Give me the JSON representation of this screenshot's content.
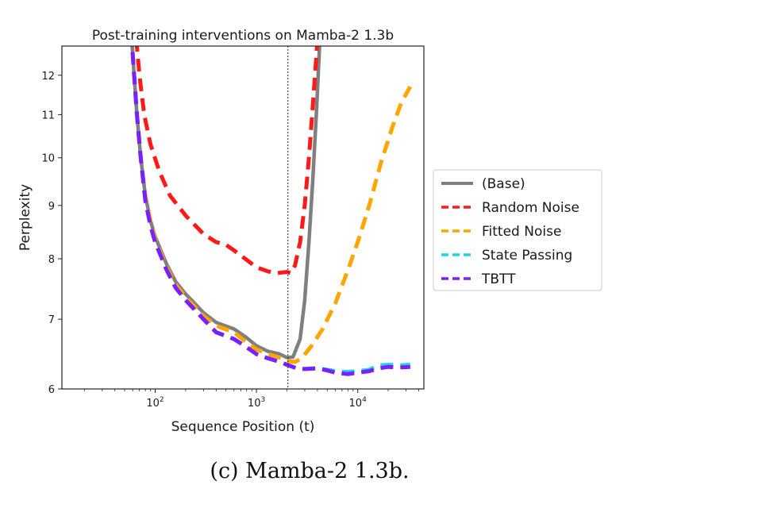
{
  "chart_data": {
    "type": "line",
    "title": "Post-training interventions on Mamba-2 1.3b",
    "xlabel": "Sequence Position (t)",
    "ylabel": "Perplexity",
    "xscale": "log",
    "yscale": "log",
    "xlim": [
      12,
      45000
    ],
    "ylim": [
      6,
      12.8
    ],
    "xticks": [
      {
        "value": 100,
        "base": "10",
        "exp": "2"
      },
      {
        "value": 1000,
        "base": "10",
        "exp": "3"
      },
      {
        "value": 10000,
        "base": "10",
        "exp": "4"
      }
    ],
    "yticks": [
      6,
      7,
      8,
      9,
      10,
      11,
      12
    ],
    "vline": {
      "x": 2048,
      "style": "dotted"
    },
    "grid": false,
    "legend_position": "right-outside",
    "series": [
      {
        "name": "(Base)",
        "color": "#7f7f7f",
        "dash": "solid",
        "points": [
          [
            58,
            13.2
          ],
          [
            62,
            12
          ],
          [
            66,
            11
          ],
          [
            72,
            10
          ],
          [
            80,
            9.2
          ],
          [
            90,
            8.7
          ],
          [
            100,
            8.4
          ],
          [
            130,
            7.9
          ],
          [
            160,
            7.6
          ],
          [
            200,
            7.4
          ],
          [
            300,
            7.1
          ],
          [
            400,
            6.95
          ],
          [
            600,
            6.85
          ],
          [
            800,
            6.72
          ],
          [
            1000,
            6.6
          ],
          [
            1300,
            6.52
          ],
          [
            1700,
            6.48
          ],
          [
            2000,
            6.43
          ],
          [
            2300,
            6.44
          ],
          [
            2700,
            6.7
          ],
          [
            3000,
            7.3
          ],
          [
            3300,
            8.3
          ],
          [
            3600,
            9.5
          ],
          [
            3900,
            11
          ],
          [
            4200,
            12.8
          ],
          [
            4400,
            13.5
          ]
        ]
      },
      {
        "name": "Random Noise",
        "color": "#ff1a1a",
        "dash": "dashed",
        "points": [
          [
            65,
            13
          ],
          [
            70,
            12
          ],
          [
            78,
            11
          ],
          [
            90,
            10.3
          ],
          [
            110,
            9.7
          ],
          [
            140,
            9.2
          ],
          [
            200,
            8.8
          ],
          [
            300,
            8.45
          ],
          [
            400,
            8.3
          ],
          [
            500,
            8.25
          ],
          [
            600,
            8.15
          ],
          [
            800,
            7.98
          ],
          [
            1000,
            7.85
          ],
          [
            1300,
            7.78
          ],
          [
            1600,
            7.75
          ],
          [
            1800,
            7.76
          ],
          [
            2000,
            7.77
          ],
          [
            2200,
            7.75
          ],
          [
            2400,
            7.88
          ],
          [
            2700,
            8.3
          ],
          [
            3000,
            9
          ],
          [
            3300,
            10
          ],
          [
            3600,
            11.2
          ],
          [
            3900,
            12.5
          ],
          [
            4100,
            13.5
          ]
        ]
      },
      {
        "name": "Fitted Noise",
        "color": "#ffa500",
        "dash": "dashed",
        "points": [
          [
            58,
            13.2
          ],
          [
            62,
            12
          ],
          [
            66,
            11
          ],
          [
            72,
            10
          ],
          [
            80,
            9.2
          ],
          [
            90,
            8.7
          ],
          [
            100,
            8.35
          ],
          [
            130,
            7.85
          ],
          [
            160,
            7.55
          ],
          [
            200,
            7.35
          ],
          [
            300,
            7.05
          ],
          [
            400,
            6.9
          ],
          [
            600,
            6.8
          ],
          [
            800,
            6.65
          ],
          [
            1000,
            6.55
          ],
          [
            1300,
            6.48
          ],
          [
            1700,
            6.43
          ],
          [
            2000,
            6.38
          ],
          [
            2400,
            6.37
          ],
          [
            2800,
            6.42
          ],
          [
            3500,
            6.6
          ],
          [
            4500,
            6.85
          ],
          [
            6000,
            7.25
          ],
          [
            8000,
            7.8
          ],
          [
            10000,
            8.3
          ],
          [
            13000,
            9
          ],
          [
            17000,
            9.9
          ],
          [
            22000,
            10.7
          ],
          [
            27000,
            11.3
          ],
          [
            33000,
            11.7
          ]
        ]
      },
      {
        "name": "State Passing",
        "color": "#22d3e6",
        "dash": "dashed",
        "points": [
          [
            58,
            13.2
          ],
          [
            62,
            12
          ],
          [
            66,
            11
          ],
          [
            72,
            10
          ],
          [
            80,
            9.1
          ],
          [
            90,
            8.6
          ],
          [
            100,
            8.3
          ],
          [
            130,
            7.8
          ],
          [
            160,
            7.5
          ],
          [
            200,
            7.3
          ],
          [
            300,
            7.0
          ],
          [
            400,
            6.8
          ],
          [
            600,
            6.7
          ],
          [
            800,
            6.58
          ],
          [
            1000,
            6.48
          ],
          [
            1300,
            6.42
          ],
          [
            1700,
            6.37
          ],
          [
            2000,
            6.33
          ],
          [
            2500,
            6.28
          ],
          [
            3000,
            6.27
          ],
          [
            4000,
            6.28
          ],
          [
            5000,
            6.26
          ],
          [
            6000,
            6.24
          ],
          [
            8000,
            6.23
          ],
          [
            10000,
            6.24
          ],
          [
            13000,
            6.26
          ],
          [
            16000,
            6.32
          ],
          [
            20000,
            6.33
          ],
          [
            25000,
            6.32
          ],
          [
            33000,
            6.33
          ]
        ]
      },
      {
        "name": "TBTT",
        "color": "#7a1fff",
        "dash": "dashed",
        "points": [
          [
            58,
            13.2
          ],
          [
            62,
            12
          ],
          [
            66,
            11
          ],
          [
            72,
            10
          ],
          [
            80,
            9.1
          ],
          [
            90,
            8.6
          ],
          [
            100,
            8.3
          ],
          [
            130,
            7.8
          ],
          [
            160,
            7.5
          ],
          [
            200,
            7.3
          ],
          [
            300,
            7.0
          ],
          [
            400,
            6.8
          ],
          [
            600,
            6.7
          ],
          [
            800,
            6.58
          ],
          [
            1000,
            6.48
          ],
          [
            1300,
            6.42
          ],
          [
            1700,
            6.37
          ],
          [
            2000,
            6.33
          ],
          [
            2500,
            6.28
          ],
          [
            3000,
            6.27
          ],
          [
            4000,
            6.28
          ],
          [
            5000,
            6.25
          ],
          [
            6000,
            6.22
          ],
          [
            8000,
            6.2
          ],
          [
            10000,
            6.22
          ],
          [
            13000,
            6.24
          ],
          [
            16000,
            6.28
          ],
          [
            20000,
            6.3
          ],
          [
            25000,
            6.29
          ],
          [
            33000,
            6.3
          ]
        ]
      }
    ]
  },
  "caption": "(c) Mamba-2 1.3b."
}
